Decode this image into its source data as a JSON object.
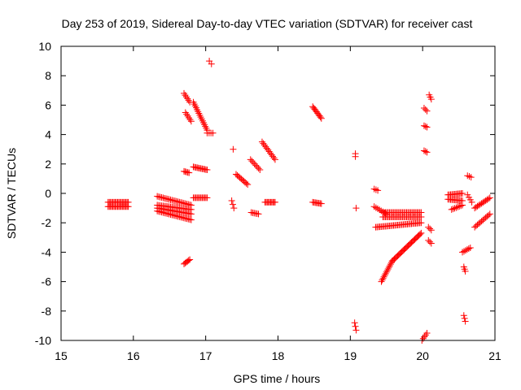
{
  "chart_data": {
    "type": "scatter",
    "title": "Day 253 of 2019, Sidereal Day-to-day VTEC variation (SDTVAR) for receiver cast",
    "xlabel": "GPS time / hours",
    "ylabel": "SDTVAR / TECUs",
    "xlim": [
      15,
      21
    ],
    "ylim": [
      -10,
      10
    ],
    "xticks": [
      15,
      16,
      17,
      18,
      19,
      20,
      21
    ],
    "yticks": [
      -10,
      -8,
      -6,
      -4,
      -2,
      0,
      2,
      4,
      6,
      8,
      10
    ],
    "marker": "plus",
    "color": "#ff0000",
    "grid": false,
    "legend": "none",
    "series": [
      {
        "name": "s1",
        "segments": [
          {
            "x0": 15.65,
            "x1": 15.93,
            "y0": -0.6,
            "y1": -0.6,
            "n": 18
          },
          {
            "x0": 15.65,
            "x1": 15.93,
            "y0": -0.9,
            "y1": -0.9,
            "n": 18
          }
        ]
      },
      {
        "name": "s2",
        "segments": [
          {
            "x0": 16.33,
            "x1": 16.8,
            "y0": -0.2,
            "y1": -0.8,
            "n": 24
          },
          {
            "x0": 16.33,
            "x1": 16.8,
            "y0": -0.8,
            "y1": -1.1,
            "n": 24
          },
          {
            "x0": 16.33,
            "x1": 16.8,
            "y0": -1.0,
            "y1": -1.4,
            "n": 24
          },
          {
            "x0": 16.33,
            "x1": 16.8,
            "y0": -1.2,
            "y1": -1.8,
            "n": 24
          }
        ]
      },
      {
        "name": "s3",
        "segments": [
          {
            "x0": 16.7,
            "x1": 16.78,
            "y0": -4.8,
            "y1": -4.5,
            "n": 6
          },
          {
            "x0": 16.7,
            "x1": 16.77,
            "y0": 1.5,
            "y1": 1.4,
            "n": 5
          },
          {
            "x0": 16.7,
            "x1": 16.78,
            "y0": 6.8,
            "y1": 6.2,
            "n": 6
          },
          {
            "x0": 16.72,
            "x1": 16.8,
            "y0": 5.5,
            "y1": 4.9,
            "n": 6
          }
        ]
      },
      {
        "name": "s4",
        "segments": [
          {
            "x0": 16.83,
            "x1": 17.02,
            "y0": 6.2,
            "y1": 4.3,
            "n": 16
          },
          {
            "x0": 16.83,
            "x1": 17.02,
            "y0": 1.8,
            "y1": 1.6,
            "n": 12
          },
          {
            "x0": 16.83,
            "x1": 17.02,
            "y0": -0.3,
            "y1": -0.3,
            "n": 12
          },
          {
            "x0": 17.02,
            "x1": 17.1,
            "y0": 4.1,
            "y1": 4.1,
            "n": 4
          }
        ]
      },
      {
        "name": "s5",
        "segments": [
          {
            "x0": 17.05,
            "x1": 17.08,
            "y0": 9.0,
            "y1": 8.8,
            "n": 2
          },
          {
            "x0": 17.38,
            "x1": 17.38,
            "y0": 3.0,
            "y1": 3.0,
            "n": 1
          },
          {
            "x0": 17.36,
            "x1": 17.39,
            "y0": -0.5,
            "y1": -1.0,
            "n": 3
          },
          {
            "x0": 17.42,
            "x1": 17.58,
            "y0": 1.3,
            "y1": 0.6,
            "n": 10
          }
        ]
      },
      {
        "name": "s6",
        "segments": [
          {
            "x0": 17.63,
            "x1": 17.73,
            "y0": -1.3,
            "y1": -1.4,
            "n": 6
          },
          {
            "x0": 17.62,
            "x1": 17.75,
            "y0": 2.3,
            "y1": 1.6,
            "n": 8
          },
          {
            "x0": 17.78,
            "x1": 17.96,
            "y0": 3.5,
            "y1": 2.3,
            "n": 12
          },
          {
            "x0": 17.82,
            "x1": 17.96,
            "y0": -0.6,
            "y1": -0.6,
            "n": 10
          }
        ]
      },
      {
        "name": "s7",
        "segments": [
          {
            "x0": 18.48,
            "x1": 18.6,
            "y0": 5.9,
            "y1": 5.1,
            "n": 10
          },
          {
            "x0": 18.48,
            "x1": 18.6,
            "y0": -0.6,
            "y1": -0.7,
            "n": 8
          }
        ]
      },
      {
        "name": "s8",
        "segments": [
          {
            "x0": 19.07,
            "x1": 19.07,
            "y0": 2.7,
            "y1": 2.5,
            "n": 2
          },
          {
            "x0": 19.08,
            "x1": 19.08,
            "y0": -1.0,
            "y1": -1.0,
            "n": 1
          },
          {
            "x0": 19.06,
            "x1": 19.08,
            "y0": -8.8,
            "y1": -9.3,
            "n": 3
          }
        ]
      },
      {
        "name": "s9",
        "segments": [
          {
            "x0": 19.33,
            "x1": 19.38,
            "y0": 0.3,
            "y1": 0.2,
            "n": 3
          },
          {
            "x0": 19.33,
            "x1": 19.5,
            "y0": -0.9,
            "y1": -1.4,
            "n": 8
          },
          {
            "x0": 19.45,
            "x1": 19.98,
            "y0": -1.3,
            "y1": -1.3,
            "n": 30
          },
          {
            "x0": 19.45,
            "x1": 19.98,
            "y0": -1.6,
            "y1": -1.6,
            "n": 30
          },
          {
            "x0": 19.35,
            "x1": 19.98,
            "y0": -2.3,
            "y1": -2.0,
            "n": 34
          }
        ]
      },
      {
        "name": "s10",
        "segments": [
          {
            "x0": 19.43,
            "x1": 19.58,
            "y0": -6.0,
            "y1": -4.6,
            "n": 14
          },
          {
            "x0": 19.58,
            "x1": 19.98,
            "y0": -4.6,
            "y1": -2.7,
            "n": 28
          }
        ]
      },
      {
        "name": "s11",
        "segments": [
          {
            "x0": 20.02,
            "x1": 20.06,
            "y0": 5.8,
            "y1": 5.6,
            "n": 3
          },
          {
            "x0": 20.02,
            "x1": 20.06,
            "y0": 4.6,
            "y1": 4.5,
            "n": 3
          },
          {
            "x0": 20.02,
            "x1": 20.06,
            "y0": 2.9,
            "y1": 2.8,
            "n": 3
          },
          {
            "x0": 20.09,
            "x1": 20.12,
            "y0": 6.7,
            "y1": 6.4,
            "n": 3
          },
          {
            "x0": 20.08,
            "x1": 20.12,
            "y0": -2.3,
            "y1": -2.5,
            "n": 3
          },
          {
            "x0": 20.08,
            "x1": 20.12,
            "y0": -3.2,
            "y1": -3.4,
            "n": 3
          },
          {
            "x0": 19.99,
            "x1": 20.06,
            "y0": -10.0,
            "y1": -9.5,
            "n": 5
          }
        ]
      },
      {
        "name": "s12",
        "segments": [
          {
            "x0": 20.35,
            "x1": 20.55,
            "y0": -0.1,
            "y1": 0.0,
            "n": 12
          },
          {
            "x0": 20.35,
            "x1": 20.55,
            "y0": -0.4,
            "y1": -0.5,
            "n": 12
          },
          {
            "x0": 20.4,
            "x1": 20.55,
            "y0": -1.1,
            "y1": -0.8,
            "n": 8
          },
          {
            "x0": 20.62,
            "x1": 20.67,
            "y0": 1.2,
            "y1": 1.1,
            "n": 3
          },
          {
            "x0": 20.62,
            "x1": 20.68,
            "y0": -0.1,
            "y1": -0.6,
            "n": 4
          },
          {
            "x0": 20.55,
            "x1": 20.66,
            "y0": -4.0,
            "y1": -3.7,
            "n": 6
          },
          {
            "x0": 20.57,
            "x1": 20.59,
            "y0": -5.0,
            "y1": -5.3,
            "n": 3
          },
          {
            "x0": 20.57,
            "x1": 20.59,
            "y0": -8.3,
            "y1": -8.7,
            "n": 3
          }
        ]
      },
      {
        "name": "s13",
        "segments": [
          {
            "x0": 20.72,
            "x1": 20.93,
            "y0": -1.0,
            "y1": -0.3,
            "n": 12
          },
          {
            "x0": 20.72,
            "x1": 20.93,
            "y0": -2.3,
            "y1": -1.4,
            "n": 12
          }
        ]
      }
    ]
  }
}
